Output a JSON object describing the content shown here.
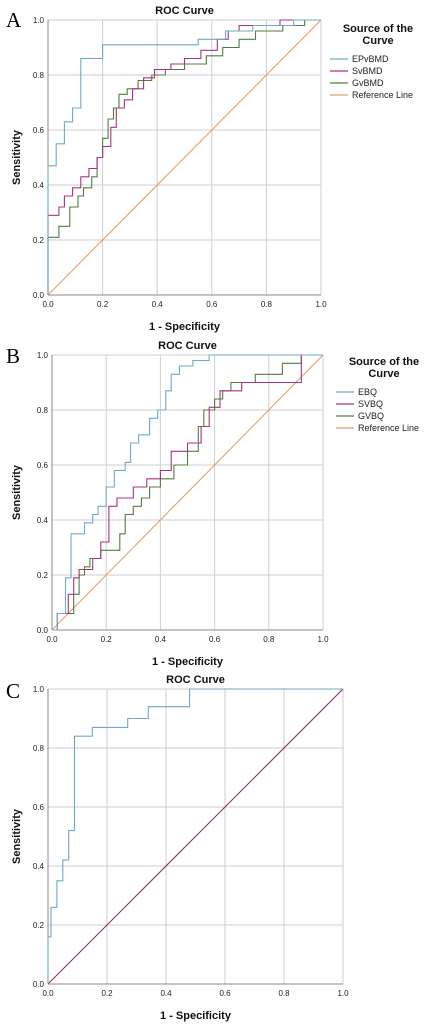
{
  "chart_data": [
    {
      "type": "line",
      "panel": "A",
      "title": "ROC Curve",
      "xlabel": "1 - Specificity",
      "ylabel": "Sensitivity",
      "xlim": [
        0,
        1
      ],
      "ylim": [
        0,
        1
      ],
      "ticks": [
        "0.0",
        "0.2",
        "0.4",
        "0.6",
        "0.8",
        "1.0"
      ],
      "grid": true,
      "legend": {
        "title": "Source of the Curve",
        "placement": "right"
      },
      "series": [
        {
          "name": "EPvBMD",
          "color": "#6fa8c8",
          "points": [
            [
              0,
              0
            ],
            [
              0,
              0.47
            ],
            [
              0.03,
              0.47
            ],
            [
              0.03,
              0.55
            ],
            [
              0.06,
              0.55
            ],
            [
              0.06,
              0.63
            ],
            [
              0.09,
              0.63
            ],
            [
              0.09,
              0.68
            ],
            [
              0.12,
              0.68
            ],
            [
              0.12,
              0.86
            ],
            [
              0.2,
              0.86
            ],
            [
              0.2,
              0.91
            ],
            [
              0.55,
              0.91
            ],
            [
              0.55,
              0.93
            ],
            [
              0.65,
              0.93
            ],
            [
              0.65,
              0.96
            ],
            [
              0.75,
              0.96
            ],
            [
              0.75,
              0.98
            ],
            [
              0.9,
              0.98
            ],
            [
              0.9,
              1
            ],
            [
              1,
              1
            ]
          ]
        },
        {
          "name": "SvBMD",
          "color": "#a8357a",
          "points": [
            [
              0,
              0
            ],
            [
              0,
              0.29
            ],
            [
              0.04,
              0.29
            ],
            [
              0.04,
              0.32
            ],
            [
              0.06,
              0.32
            ],
            [
              0.06,
              0.36
            ],
            [
              0.09,
              0.36
            ],
            [
              0.09,
              0.39
            ],
            [
              0.12,
              0.39
            ],
            [
              0.12,
              0.43
            ],
            [
              0.15,
              0.43
            ],
            [
              0.15,
              0.46
            ],
            [
              0.18,
              0.46
            ],
            [
              0.18,
              0.5
            ],
            [
              0.2,
              0.5
            ],
            [
              0.2,
              0.54
            ],
            [
              0.23,
              0.54
            ],
            [
              0.23,
              0.61
            ],
            [
              0.25,
              0.61
            ],
            [
              0.25,
              0.68
            ],
            [
              0.28,
              0.68
            ],
            [
              0.28,
              0.71
            ],
            [
              0.31,
              0.71
            ],
            [
              0.31,
              0.75
            ],
            [
              0.35,
              0.75
            ],
            [
              0.35,
              0.79
            ],
            [
              0.39,
              0.79
            ],
            [
              0.39,
              0.82
            ],
            [
              0.45,
              0.82
            ],
            [
              0.45,
              0.84
            ],
            [
              0.5,
              0.84
            ],
            [
              0.5,
              0.86
            ],
            [
              0.56,
              0.86
            ],
            [
              0.56,
              0.89
            ],
            [
              0.62,
              0.89
            ],
            [
              0.62,
              0.93
            ],
            [
              0.66,
              0.93
            ],
            [
              0.66,
              0.96
            ],
            [
              0.7,
              0.96
            ],
            [
              0.7,
              0.98
            ],
            [
              0.85,
              0.98
            ],
            [
              0.85,
              1
            ],
            [
              1,
              1
            ]
          ]
        },
        {
          "name": "GvBMD",
          "color": "#4f7f3f",
          "points": [
            [
              0,
              0
            ],
            [
              0,
              0.21
            ],
            [
              0.04,
              0.21
            ],
            [
              0.04,
              0.25
            ],
            [
              0.08,
              0.25
            ],
            [
              0.08,
              0.32
            ],
            [
              0.11,
              0.32
            ],
            [
              0.11,
              0.36
            ],
            [
              0.13,
              0.36
            ],
            [
              0.13,
              0.39
            ],
            [
              0.16,
              0.39
            ],
            [
              0.16,
              0.43
            ],
            [
              0.18,
              0.43
            ],
            [
              0.18,
              0.5
            ],
            [
              0.2,
              0.5
            ],
            [
              0.2,
              0.57
            ],
            [
              0.22,
              0.57
            ],
            [
              0.22,
              0.64
            ],
            [
              0.24,
              0.64
            ],
            [
              0.24,
              0.68
            ],
            [
              0.26,
              0.68
            ],
            [
              0.26,
              0.73
            ],
            [
              0.29,
              0.73
            ],
            [
              0.29,
              0.75
            ],
            [
              0.33,
              0.75
            ],
            [
              0.33,
              0.78
            ],
            [
              0.38,
              0.78
            ],
            [
              0.38,
              0.8
            ],
            [
              0.43,
              0.8
            ],
            [
              0.43,
              0.82
            ],
            [
              0.5,
              0.82
            ],
            [
              0.5,
              0.84
            ],
            [
              0.58,
              0.84
            ],
            [
              0.58,
              0.87
            ],
            [
              0.64,
              0.87
            ],
            [
              0.64,
              0.9
            ],
            [
              0.7,
              0.9
            ],
            [
              0.7,
              0.93
            ],
            [
              0.76,
              0.93
            ],
            [
              0.76,
              0.96
            ],
            [
              0.86,
              0.96
            ],
            [
              0.86,
              0.98
            ],
            [
              0.94,
              0.98
            ],
            [
              0.94,
              1
            ],
            [
              1,
              1
            ]
          ]
        },
        {
          "name": "Reference Line",
          "color": "#e0a070",
          "points": [
            [
              0,
              0
            ],
            [
              1,
              1
            ]
          ]
        }
      ]
    },
    {
      "type": "line",
      "panel": "B",
      "title": "ROC Curve",
      "xlabel": "1 - Specificity",
      "ylabel": "Sensitivity",
      "xlim": [
        0,
        1
      ],
      "ylim": [
        0,
        1
      ],
      "ticks": [
        "0.0",
        "0.2",
        "0.4",
        "0.6",
        "0.8",
        "1.0"
      ],
      "grid": true,
      "legend": {
        "title": "Source of the Curve",
        "placement": "right"
      },
      "series": [
        {
          "name": "EBQ",
          "color": "#6fa8c8",
          "points": [
            [
              0,
              0
            ],
            [
              0.02,
              0
            ],
            [
              0.02,
              0.06
            ],
            [
              0.05,
              0.06
            ],
            [
              0.05,
              0.19
            ],
            [
              0.07,
              0.19
            ],
            [
              0.07,
              0.35
            ],
            [
              0.12,
              0.35
            ],
            [
              0.12,
              0.39
            ],
            [
              0.15,
              0.39
            ],
            [
              0.15,
              0.42
            ],
            [
              0.17,
              0.42
            ],
            [
              0.17,
              0.45
            ],
            [
              0.2,
              0.45
            ],
            [
              0.2,
              0.52
            ],
            [
              0.23,
              0.52
            ],
            [
              0.23,
              0.58
            ],
            [
              0.27,
              0.58
            ],
            [
              0.27,
              0.61
            ],
            [
              0.29,
              0.61
            ],
            [
              0.29,
              0.68
            ],
            [
              0.32,
              0.68
            ],
            [
              0.32,
              0.71
            ],
            [
              0.36,
              0.71
            ],
            [
              0.36,
              0.77
            ],
            [
              0.39,
              0.77
            ],
            [
              0.39,
              0.8
            ],
            [
              0.42,
              0.8
            ],
            [
              0.42,
              0.87
            ],
            [
              0.44,
              0.87
            ],
            [
              0.44,
              0.93
            ],
            [
              0.47,
              0.93
            ],
            [
              0.47,
              0.96
            ],
            [
              0.52,
              0.96
            ],
            [
              0.52,
              0.98
            ],
            [
              0.58,
              0.98
            ],
            [
              0.58,
              1
            ],
            [
              1,
              1
            ]
          ]
        },
        {
          "name": "SVBQ",
          "color": "#a8357a",
          "points": [
            [
              0,
              0
            ],
            [
              0.02,
              0
            ],
            [
              0.02,
              0.06
            ],
            [
              0.06,
              0.06
            ],
            [
              0.06,
              0.13
            ],
            [
              0.08,
              0.13
            ],
            [
              0.08,
              0.19
            ],
            [
              0.1,
              0.19
            ],
            [
              0.1,
              0.22
            ],
            [
              0.15,
              0.22
            ],
            [
              0.15,
              0.26
            ],
            [
              0.18,
              0.26
            ],
            [
              0.18,
              0.32
            ],
            [
              0.21,
              0.32
            ],
            [
              0.21,
              0.45
            ],
            [
              0.24,
              0.45
            ],
            [
              0.24,
              0.48
            ],
            [
              0.3,
              0.48
            ],
            [
              0.3,
              0.52
            ],
            [
              0.35,
              0.52
            ],
            [
              0.35,
              0.55
            ],
            [
              0.4,
              0.55
            ],
            [
              0.4,
              0.58
            ],
            [
              0.44,
              0.58
            ],
            [
              0.44,
              0.65
            ],
            [
              0.5,
              0.65
            ],
            [
              0.5,
              0.68
            ],
            [
              0.55,
              0.68
            ],
            [
              0.55,
              0.74
            ],
            [
              0.58,
              0.74
            ],
            [
              0.58,
              0.81
            ],
            [
              0.62,
              0.81
            ],
            [
              0.62,
              0.87
            ],
            [
              0.7,
              0.87
            ],
            [
              0.7,
              0.9
            ],
            [
              0.92,
              0.9
            ],
            [
              0.92,
              1
            ],
            [
              1,
              1
            ]
          ]
        },
        {
          "name": "GVBQ",
          "color": "#4f7f3f",
          "points": [
            [
              0,
              0
            ],
            [
              0.02,
              0
            ],
            [
              0.02,
              0.06
            ],
            [
              0.08,
              0.06
            ],
            [
              0.08,
              0.13
            ],
            [
              0.1,
              0.13
            ],
            [
              0.1,
              0.2
            ],
            [
              0.12,
              0.2
            ],
            [
              0.12,
              0.23
            ],
            [
              0.14,
              0.23
            ],
            [
              0.14,
              0.26
            ],
            [
              0.18,
              0.26
            ],
            [
              0.18,
              0.29
            ],
            [
              0.25,
              0.29
            ],
            [
              0.25,
              0.35
            ],
            [
              0.27,
              0.35
            ],
            [
              0.27,
              0.42
            ],
            [
              0.3,
              0.42
            ],
            [
              0.3,
              0.45
            ],
            [
              0.33,
              0.45
            ],
            [
              0.33,
              0.48
            ],
            [
              0.36,
              0.48
            ],
            [
              0.36,
              0.52
            ],
            [
              0.4,
              0.52
            ],
            [
              0.4,
              0.55
            ],
            [
              0.45,
              0.55
            ],
            [
              0.45,
              0.6
            ],
            [
              0.5,
              0.6
            ],
            [
              0.5,
              0.65
            ],
            [
              0.54,
              0.65
            ],
            [
              0.54,
              0.74
            ],
            [
              0.56,
              0.74
            ],
            [
              0.56,
              0.8
            ],
            [
              0.6,
              0.8
            ],
            [
              0.6,
              0.84
            ],
            [
              0.63,
              0.84
            ],
            [
              0.63,
              0.87
            ],
            [
              0.66,
              0.87
            ],
            [
              0.66,
              0.9
            ],
            [
              0.75,
              0.9
            ],
            [
              0.75,
              0.93
            ],
            [
              0.85,
              0.93
            ],
            [
              0.85,
              0.97
            ],
            [
              0.92,
              0.97
            ],
            [
              0.92,
              1
            ],
            [
              1,
              1
            ]
          ]
        },
        {
          "name": "Reference Line",
          "color": "#e0a070",
          "points": [
            [
              0,
              0
            ],
            [
              1,
              1
            ]
          ]
        }
      ]
    },
    {
      "type": "line",
      "panel": "C",
      "title": "ROC Curve",
      "xlabel": "1 - Specificity",
      "ylabel": "Sensitivity",
      "xlim": [
        0,
        1
      ],
      "ylim": [
        0,
        1
      ],
      "ticks": [
        "0.0",
        "0.2",
        "0.4",
        "0.6",
        "0.8",
        "1.0"
      ],
      "grid": true,
      "legend": null,
      "series": [
        {
          "name": "",
          "color": "#6fa8c8",
          "points": [
            [
              0,
              0
            ],
            [
              0,
              0.16
            ],
            [
              0.01,
              0.16
            ],
            [
              0.01,
              0.26
            ],
            [
              0.03,
              0.26
            ],
            [
              0.03,
              0.35
            ],
            [
              0.05,
              0.35
            ],
            [
              0.05,
              0.42
            ],
            [
              0.07,
              0.42
            ],
            [
              0.07,
              0.52
            ],
            [
              0.09,
              0.52
            ],
            [
              0.09,
              0.84
            ],
            [
              0.15,
              0.84
            ],
            [
              0.15,
              0.87
            ],
            [
              0.27,
              0.87
            ],
            [
              0.27,
              0.9
            ],
            [
              0.34,
              0.9
            ],
            [
              0.34,
              0.94
            ],
            [
              0.48,
              0.94
            ],
            [
              0.48,
              1
            ],
            [
              1,
              1
            ]
          ]
        },
        {
          "name": "",
          "color": "#9c2a5a",
          "points": [
            [
              0,
              0
            ],
            [
              1,
              1
            ]
          ]
        }
      ]
    }
  ]
}
